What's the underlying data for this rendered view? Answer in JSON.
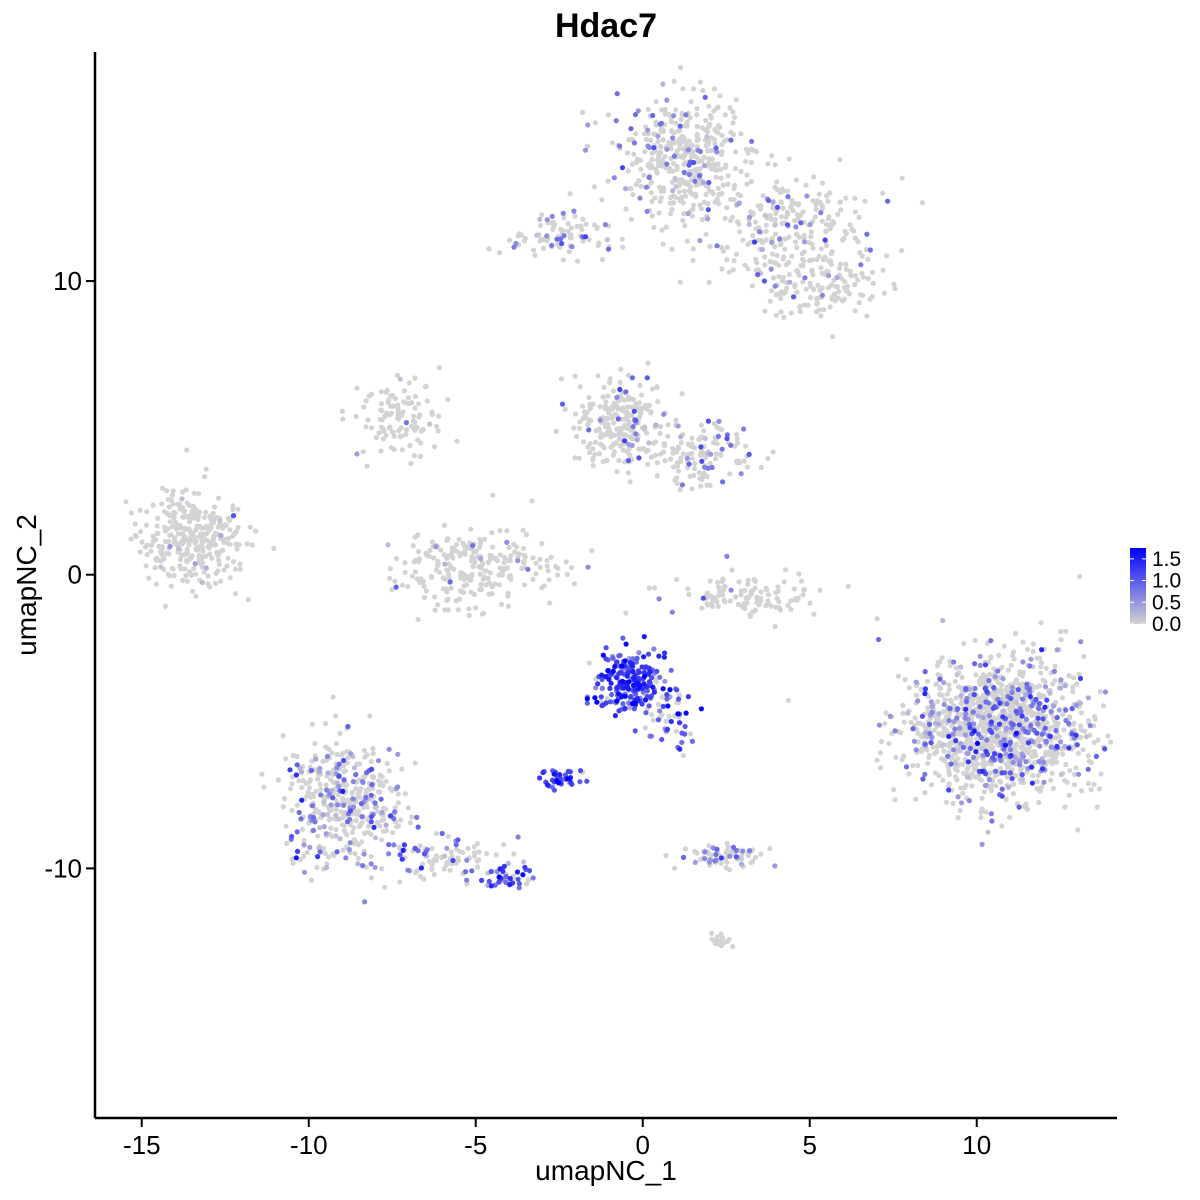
{
  "chart_data": {
    "type": "scatter",
    "title": "Hdac7",
    "xlabel": "umapNC_1",
    "ylabel": "umapNC_2",
    "xlim": [
      -16.4,
      14.2
    ],
    "ylim": [
      -18.5,
      17.8
    ],
    "x_ticks": [
      {
        "value": -15,
        "label": "-15"
      },
      {
        "value": -10,
        "label": "-10"
      },
      {
        "value": -5,
        "label": "-5"
      },
      {
        "value": 0,
        "label": "0"
      },
      {
        "value": 5,
        "label": "5"
      },
      {
        "value": 10,
        "label": "10"
      }
    ],
    "y_ticks": [
      {
        "value": -10,
        "label": "-10"
      },
      {
        "value": 0,
        "label": "0"
      },
      {
        "value": 10,
        "label": "10"
      }
    ],
    "grid": false,
    "legend": {
      "placement": "right",
      "type": "colorbar",
      "range": [
        0,
        1.75
      ],
      "ticks": [
        {
          "value": 0.0,
          "label": "0.0"
        },
        {
          "value": 0.5,
          "label": "0.5"
        },
        {
          "value": 1.0,
          "label": "1.0"
        },
        {
          "value": 1.5,
          "label": "1.5"
        }
      ]
    },
    "colors": {
      "low": "#d3d3d3",
      "high": "#0000ff"
    },
    "clusters": [
      {
        "id": "cluster-left-small",
        "cx": -13.5,
        "cy": 1.2,
        "sx": 0.75,
        "sy": 0.8,
        "n": 320,
        "expr_frac": 0.02,
        "expr_mean": 0.4
      },
      {
        "id": "cluster-top-right",
        "cx": 1.2,
        "cy": 14.2,
        "sx": 1.0,
        "sy": 1.1,
        "n": 420,
        "expr_frac": 0.12,
        "expr_mean": 0.6
      },
      {
        "id": "cluster-top-right-arm",
        "cx": 4.3,
        "cy": 11.8,
        "sx": 1.4,
        "sy": 0.9,
        "n": 260,
        "expr_frac": 0.1,
        "expr_mean": 0.6
      },
      {
        "id": "cluster-top-right-tail",
        "cx": 5.2,
        "cy": 9.7,
        "sx": 0.9,
        "sy": 0.6,
        "n": 110,
        "expr_frac": 0.08,
        "expr_mean": 0.6
      },
      {
        "id": "cluster-top-left-small",
        "cx": -2.5,
        "cy": 11.5,
        "sx": 0.7,
        "sy": 0.35,
        "n": 90,
        "expr_frac": 0.2,
        "expr_mean": 0.7
      },
      {
        "id": "cluster-mid-upper",
        "cx": -0.6,
        "cy": 5.2,
        "sx": 0.75,
        "sy": 0.8,
        "n": 240,
        "expr_frac": 0.07,
        "expr_mean": 0.6
      },
      {
        "id": "cluster-mid-upper-right",
        "cx": 1.8,
        "cy": 4.2,
        "sx": 0.8,
        "sy": 0.55,
        "n": 130,
        "expr_frac": 0.18,
        "expr_mean": 0.7
      },
      {
        "id": "cluster-mid-left",
        "cx": -7.3,
        "cy": 5.3,
        "sx": 0.6,
        "sy": 0.6,
        "n": 110,
        "expr_frac": 0.02,
        "expr_mean": 0.5
      },
      {
        "id": "cluster-mid-bowl",
        "cx": -5.0,
        "cy": 0.2,
        "sx": 1.4,
        "sy": 0.7,
        "n": 240,
        "expr_frac": 0.05,
        "expr_mean": 0.5
      },
      {
        "id": "cluster-mid-right-arc",
        "cx": 3.2,
        "cy": -0.7,
        "sx": 1.2,
        "sy": 0.35,
        "n": 110,
        "expr_frac": 0.04,
        "expr_mean": 0.5
      },
      {
        "id": "cluster-center-high",
        "cx": -0.4,
        "cy": -3.6,
        "sx": 0.55,
        "sy": 0.55,
        "n": 220,
        "expr_frac": 0.92,
        "expr_mean": 1.2
      },
      {
        "id": "cluster-center-tail",
        "cx": 0.7,
        "cy": -4.9,
        "sx": 0.35,
        "sy": 0.45,
        "n": 50,
        "expr_frac": 0.75,
        "expr_mean": 1.0
      },
      {
        "id": "cluster-center-small",
        "cx": -2.4,
        "cy": -6.9,
        "sx": 0.35,
        "sy": 0.18,
        "n": 40,
        "expr_frac": 0.9,
        "expr_mean": 1.1
      },
      {
        "id": "cluster-right-large",
        "cx": 10.6,
        "cy": -5.2,
        "sx": 1.3,
        "sy": 1.2,
        "n": 1300,
        "expr_frac": 0.25,
        "expr_mean": 0.7
      },
      {
        "id": "cluster-bottom-left",
        "cx": -8.9,
        "cy": -7.8,
        "sx": 0.9,
        "sy": 1.1,
        "n": 420,
        "expr_frac": 0.28,
        "expr_mean": 0.7
      },
      {
        "id": "cluster-bottom-left-arm",
        "cx": -6.0,
        "cy": -9.6,
        "sx": 1.0,
        "sy": 0.35,
        "n": 90,
        "expr_frac": 0.4,
        "expr_mean": 0.8
      },
      {
        "id": "cluster-bottom-left-tip",
        "cx": -4.1,
        "cy": -10.3,
        "sx": 0.3,
        "sy": 0.2,
        "n": 40,
        "expr_frac": 0.65,
        "expr_mean": 1.0
      },
      {
        "id": "cluster-bottom-mid",
        "cx": 2.4,
        "cy": -9.6,
        "sx": 0.6,
        "sy": 0.2,
        "n": 70,
        "expr_frac": 0.3,
        "expr_mean": 0.7
      },
      {
        "id": "cluster-bottom-mid-small",
        "cx": 2.3,
        "cy": -12.5,
        "sx": 0.2,
        "sy": 0.12,
        "n": 20,
        "expr_frac": 0.0,
        "expr_mean": 0.3
      }
    ]
  }
}
